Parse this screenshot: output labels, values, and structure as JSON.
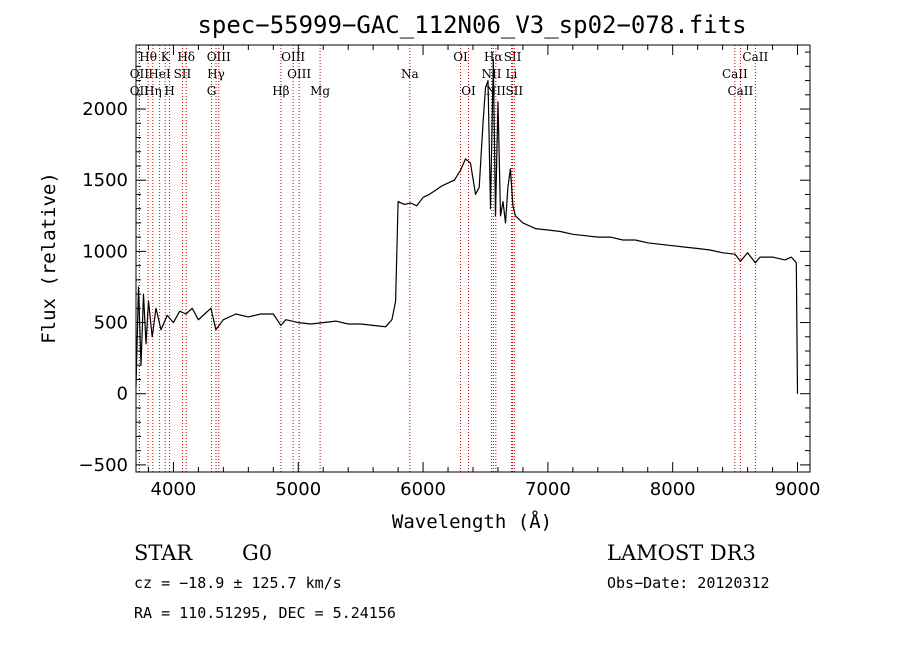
{
  "chart_data": {
    "type": "line",
    "title": "spec−55999−GAC_112N06_V3_sp02−078.fits",
    "xlabel": "Wavelength (Å)",
    "ylabel": "Flux (relative)",
    "xlim": [
      3700,
      9100
    ],
    "ylim": [
      -550,
      2450
    ],
    "x_ticks": [
      4000,
      5000,
      6000,
      7000,
      8000,
      9000
    ],
    "y_ticks": [
      -500,
      0,
      500,
      1000,
      1500,
      2000
    ],
    "grid": false,
    "series": [
      {
        "x": [
          3700,
          3720,
          3740,
          3760,
          3780,
          3800,
          3830,
          3860,
          3900,
          3950,
          4000,
          4050,
          4100,
          4150,
          4200,
          4250,
          4300,
          4340,
          4400,
          4500,
          4600,
          4700,
          4800,
          4861,
          4900,
          5000,
          5100,
          5200,
          5300,
          5400,
          5500,
          5600,
          5700,
          5750,
          5780,
          5800,
          5850,
          5900,
          5950,
          6000,
          6050,
          6100,
          6150,
          6200,
          6250,
          6300,
          6340,
          6380,
          6420,
          6450,
          6480,
          6500,
          6520,
          6540,
          6563,
          6580,
          6600,
          6620,
          6640,
          6660,
          6680,
          6700,
          6720,
          6740,
          6800,
          6900,
          7000,
          7100,
          7200,
          7300,
          7400,
          7500,
          7600,
          7700,
          7800,
          7900,
          8000,
          8100,
          8200,
          8300,
          8400,
          8500,
          8542,
          8600,
          8662,
          8700,
          8800,
          8900,
          8950,
          8990,
          9000
        ],
        "y": [
          50,
          750,
          200,
          700,
          350,
          650,
          400,
          600,
          450,
          550,
          500,
          580,
          560,
          600,
          520,
          560,
          600,
          450,
          520,
          560,
          540,
          560,
          560,
          480,
          520,
          500,
          490,
          500,
          510,
          490,
          490,
          480,
          470,
          520,
          650,
          1350,
          1330,
          1340,
          1320,
          1380,
          1400,
          1430,
          1460,
          1480,
          1500,
          1570,
          1650,
          1620,
          1400,
          1450,
          1900,
          2150,
          2200,
          1300,
          2350,
          1250,
          2050,
          1250,
          1350,
          1200,
          1450,
          1580,
          1320,
          1250,
          1200,
          1160,
          1150,
          1140,
          1120,
          1110,
          1100,
          1100,
          1080,
          1080,
          1060,
          1050,
          1040,
          1030,
          1020,
          1010,
          990,
          980,
          930,
          990,
          920,
          960,
          960,
          940,
          960,
          920,
          0
        ]
      }
    ],
    "line_markers": [
      {
        "label": "Hθ",
        "x": 3797,
        "row": 0
      },
      {
        "label": "K",
        "x": 3934,
        "row": 0
      },
      {
        "label": "Hδ",
        "x": 4102,
        "row": 0
      },
      {
        "label": "OII",
        "x": 3727,
        "row": 1
      },
      {
        "label": "HeI",
        "x": 3889,
        "row": 1
      },
      {
        "label": "SII",
        "x": 4072,
        "row": 1
      },
      {
        "label": "OII",
        "x": 3727,
        "row": 2
      },
      {
        "label": "Hη",
        "x": 3835,
        "row": 2
      },
      {
        "label": "H",
        "x": 3969,
        "row": 2
      },
      {
        "label": "OIII",
        "x": 4363,
        "row": 0
      },
      {
        "label": "Hγ",
        "x": 4341,
        "row": 1
      },
      {
        "label": "G",
        "x": 4305,
        "row": 2
      },
      {
        "label": "OIII",
        "x": 4959,
        "row": 0
      },
      {
        "label": "OIII",
        "x": 5007,
        "row": 1
      },
      {
        "label": "Hβ",
        "x": 4861,
        "row": 2
      },
      {
        "label": "Mg",
        "x": 5175,
        "row": 2
      },
      {
        "label": "Na",
        "x": 5894,
        "row": 1
      },
      {
        "label": "OI",
        "x": 6300,
        "row": 0
      },
      {
        "label": "OI",
        "x": 6364,
        "row": 2
      },
      {
        "label": "Hα",
        "x": 6563,
        "row": 0
      },
      {
        "label": "NII",
        "x": 6548,
        "row": 1
      },
      {
        "label": "NII",
        "x": 6583,
        "row": 2
      },
      {
        "label": "SII",
        "x": 6717,
        "row": 0
      },
      {
        "label": "Li",
        "x": 6708,
        "row": 1
      },
      {
        "label": "SII",
        "x": 6731,
        "row": 2
      },
      {
        "label": "CaII",
        "x": 8662,
        "row": 0
      },
      {
        "label": "CaII",
        "x": 8498,
        "row": 1
      },
      {
        "label": "CaII",
        "x": 8542,
        "row": 2
      }
    ],
    "marker_color": "#cc0000"
  },
  "footer": {
    "class_label": "STAR",
    "subclass": "G0",
    "survey": "LAMOST DR3",
    "cz": "cz = −18.9 ± 125.7 km/s",
    "obs_date": "Obs−Date: 20120312",
    "coords": "RA = 110.51295, DEC =   5.24156"
  }
}
